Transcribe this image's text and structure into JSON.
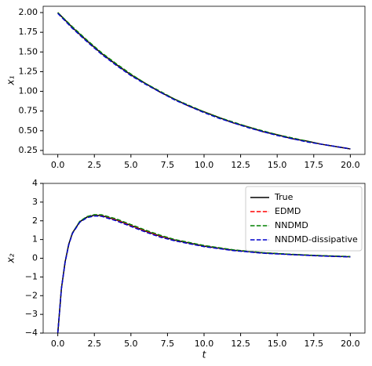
{
  "chart_data": [
    {
      "type": "line",
      "ylabel": "x₁",
      "x": [
        0,
        1,
        2,
        3,
        4,
        5,
        6,
        7,
        8,
        9,
        10,
        11,
        12,
        13,
        14,
        15,
        16,
        17,
        18,
        19,
        20
      ],
      "series": [
        {
          "color": "#000000",
          "linestyle": "solid",
          "values": [
            2.0,
            1.81,
            1.64,
            1.48,
            1.34,
            1.21,
            1.1,
            0.99,
            0.9,
            0.81,
            0.74,
            0.67,
            0.6,
            0.55,
            0.49,
            0.45,
            0.4,
            0.37,
            0.33,
            0.3,
            0.27
          ]
        },
        {
          "color": "#ff0000",
          "linestyle": "dashed",
          "values": [
            2.0,
            1.81,
            1.64,
            1.48,
            1.34,
            1.21,
            1.1,
            0.99,
            0.9,
            0.81,
            0.74,
            0.67,
            0.6,
            0.55,
            0.49,
            0.45,
            0.4,
            0.37,
            0.33,
            0.3,
            0.27
          ]
        },
        {
          "color": "#008000",
          "linestyle": "dashed",
          "values": [
            2.0,
            1.82,
            1.65,
            1.49,
            1.35,
            1.22,
            1.1,
            1.0,
            0.9,
            0.82,
            0.74,
            0.67,
            0.61,
            0.55,
            0.5,
            0.45,
            0.41,
            0.37,
            0.33,
            0.3,
            0.27
          ]
        },
        {
          "color": "#0000cc",
          "linestyle": "dashed",
          "values": [
            1.99,
            1.8,
            1.63,
            1.47,
            1.33,
            1.2,
            1.09,
            0.99,
            0.89,
            0.81,
            0.73,
            0.66,
            0.6,
            0.54,
            0.49,
            0.44,
            0.4,
            0.36,
            0.33,
            0.3,
            0.27
          ]
        }
      ],
      "xlim": [
        -1,
        21
      ],
      "ylim": [
        0.2,
        2.08
      ],
      "xticks": [
        {
          "value": 0,
          "label": "0.0"
        },
        2.5,
        {
          "value": 5,
          "label": "5.0"
        },
        7.5,
        {
          "value": 10,
          "label": "10.0"
        },
        12.5,
        {
          "value": 15,
          "label": "15.0"
        },
        17.5,
        {
          "value": 20,
          "label": "20.0"
        }
      ],
      "yticks": [
        0.25,
        {
          "value": 0.5,
          "label": "0.50"
        },
        0.75,
        {
          "value": 1,
          "label": "1.00"
        },
        1.25,
        {
          "value": 1.5,
          "label": "1.50"
        },
        1.75,
        {
          "value": 2,
          "label": "2.00"
        }
      ]
    },
    {
      "type": "line",
      "ylabel": "x₂",
      "xlabel": "t",
      "legend": "upper right",
      "x": [
        0,
        0.25,
        0.5,
        0.75,
        1,
        1.5,
        2,
        2.5,
        3,
        4,
        5,
        6,
        7,
        8,
        10,
        12,
        14,
        16,
        18,
        20
      ],
      "series": [
        {
          "name": "True",
          "color": "#000000",
          "linestyle": "solid",
          "values": [
            -4,
            -1.6,
            -0.2,
            0.75,
            1.35,
            1.95,
            2.2,
            2.3,
            2.28,
            2.05,
            1.75,
            1.45,
            1.18,
            0.97,
            0.65,
            0.43,
            0.29,
            0.2,
            0.13,
            0.08
          ]
        },
        {
          "name": "EDMD",
          "color": "#ff0000",
          "linestyle": "dashed",
          "values": [
            -4,
            -1.6,
            -0.2,
            0.75,
            1.35,
            1.95,
            2.2,
            2.3,
            2.28,
            2.05,
            1.75,
            1.45,
            1.18,
            0.97,
            0.65,
            0.43,
            0.29,
            0.2,
            0.13,
            0.08
          ]
        },
        {
          "name": "NNDMD",
          "color": "#008000",
          "linestyle": "dashed",
          "values": [
            -4,
            -1.6,
            -0.2,
            0.75,
            1.35,
            1.97,
            2.23,
            2.33,
            2.32,
            2.1,
            1.8,
            1.5,
            1.23,
            1.0,
            0.68,
            0.45,
            0.3,
            0.21,
            0.14,
            0.09
          ]
        },
        {
          "name": "NNDMD-dissipative",
          "color": "#0000cc",
          "linestyle": "dashed",
          "values": [
            -4,
            -1.62,
            -0.22,
            0.72,
            1.32,
            1.92,
            2.17,
            2.26,
            2.24,
            2.0,
            1.7,
            1.4,
            1.13,
            0.93,
            0.62,
            0.41,
            0.27,
            0.19,
            0.12,
            0.07
          ]
        }
      ],
      "xlim": [
        -1,
        21
      ],
      "ylim": [
        -4,
        4
      ],
      "xticks": [
        {
          "value": 0,
          "label": "0.0"
        },
        2.5,
        {
          "value": 5,
          "label": "5.0"
        },
        7.5,
        {
          "value": 10,
          "label": "10.0"
        },
        12.5,
        {
          "value": 15,
          "label": "15.0"
        },
        17.5,
        {
          "value": 20,
          "label": "20.0"
        }
      ],
      "yticks": [
        {
          "value": -4,
          "label": "−4"
        },
        {
          "value": -3,
          "label": "−3"
        },
        {
          "value": -2,
          "label": "−2"
        },
        {
          "value": -1,
          "label": "−1"
        },
        0,
        1,
        2,
        3,
        4
      ]
    }
  ]
}
